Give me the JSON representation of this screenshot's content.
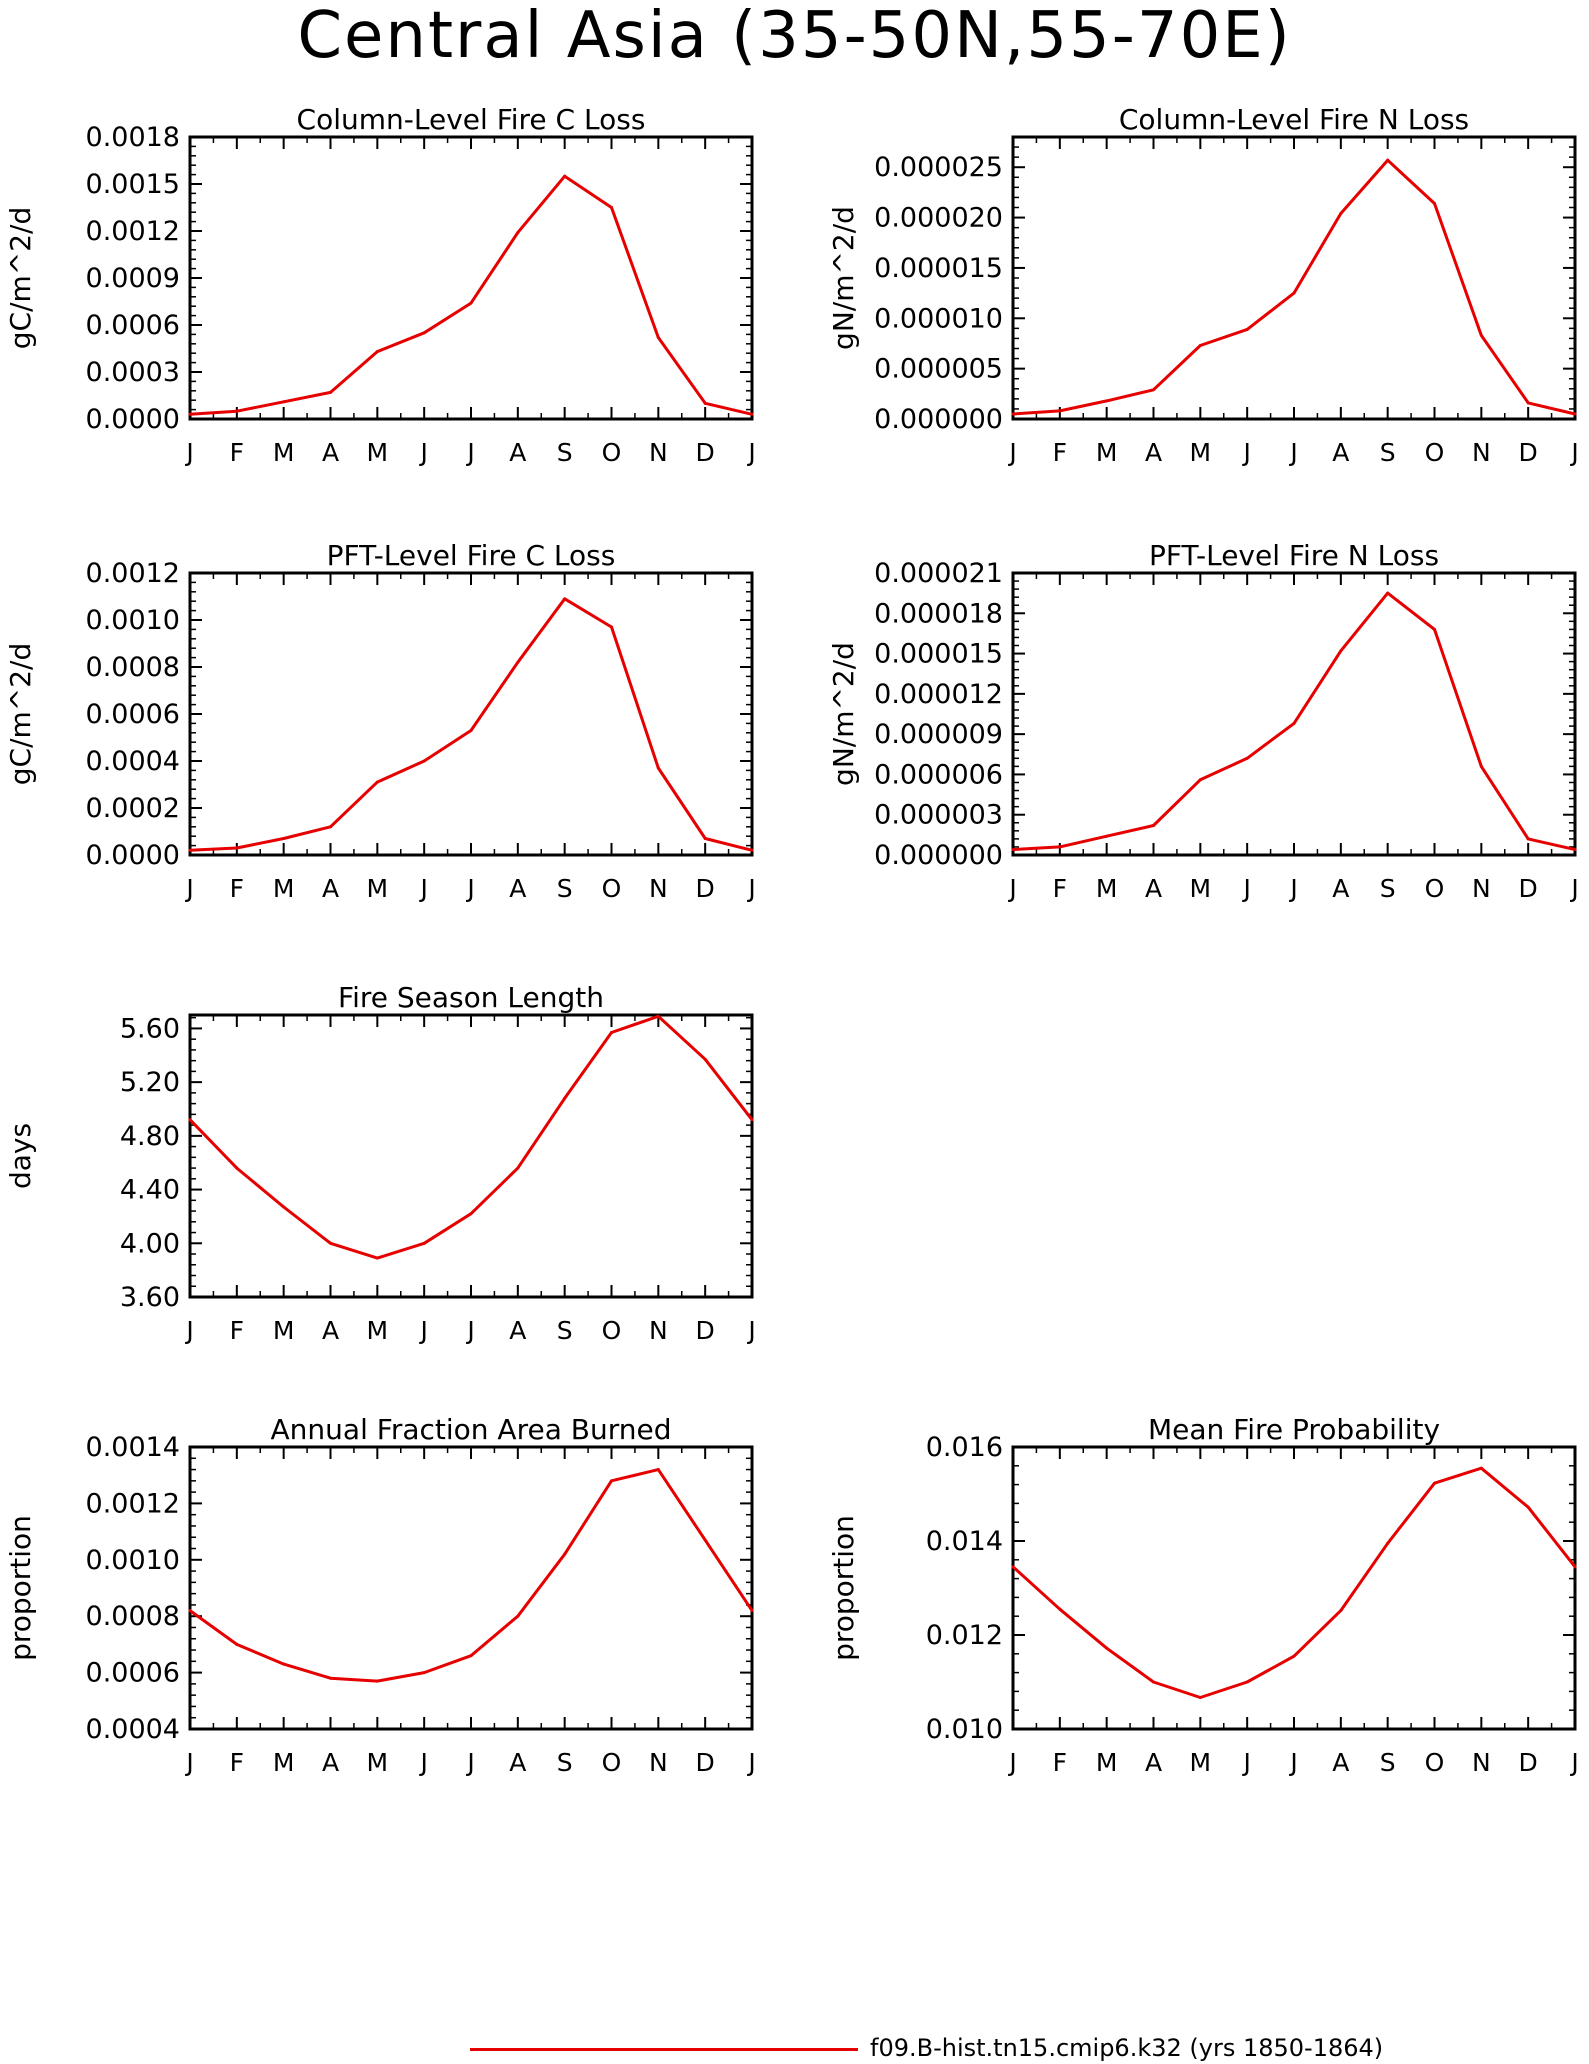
{
  "figure_title": "Central Asia (35-50N,55-70E)",
  "months": [
    "J",
    "F",
    "M",
    "A",
    "M",
    "J",
    "J",
    "A",
    "S",
    "O",
    "N",
    "D",
    "J"
  ],
  "line_color": "#e60000",
  "legend": {
    "label": "f09.B-hist.tn15.cmip6.k32 (yrs 1850-1864)"
  },
  "chart_data": [
    {
      "type": "line",
      "title": "Column-Level Fire C Loss",
      "ylabel": "gC/m^2/d",
      "ylim": [
        0,
        0.0018
      ],
      "yticks": [
        "0.0000",
        "0.0003",
        "0.0006",
        "0.0009",
        "0.0012",
        "0.0015",
        "0.0018"
      ],
      "categories": [
        "J",
        "F",
        "M",
        "A",
        "M",
        "J",
        "J",
        "A",
        "S",
        "O",
        "N",
        "D",
        "J"
      ],
      "values": [
        3e-05,
        5e-05,
        0.00011,
        0.00017,
        0.00043,
        0.00055,
        0.00074,
        0.00119,
        0.00155,
        0.00135,
        0.00052,
        0.0001,
        3e-05
      ]
    },
    {
      "type": "line",
      "title": "Column-Level Fire N Loss",
      "ylabel": "gN/m^2/d",
      "ylim": [
        0,
        2.8e-05
      ],
      "yticks": [
        "0.000000",
        "0.000005",
        "0.000010",
        "0.000015",
        "0.000020",
        "0.000025"
      ],
      "categories": [
        "J",
        "F",
        "M",
        "A",
        "M",
        "J",
        "J",
        "A",
        "S",
        "O",
        "N",
        "D",
        "J"
      ],
      "values": [
        5e-07,
        8e-07,
        1.8e-06,
        2.9e-06,
        7.3e-06,
        8.9e-06,
        1.25e-05,
        2.04e-05,
        2.57e-05,
        2.14e-05,
        8.3e-06,
        1.6e-06,
        5e-07
      ]
    },
    {
      "type": "line",
      "title": "PFT-Level Fire C Loss",
      "ylabel": "gC/m^2/d",
      "ylim": [
        0,
        0.0012
      ],
      "yticks": [
        "0.0000",
        "0.0002",
        "0.0004",
        "0.0006",
        "0.0008",
        "0.0010",
        "0.0012"
      ],
      "categories": [
        "J",
        "F",
        "M",
        "A",
        "M",
        "J",
        "J",
        "A",
        "S",
        "O",
        "N",
        "D",
        "J"
      ],
      "values": [
        2e-05,
        3e-05,
        7e-05,
        0.00012,
        0.00031,
        0.0004,
        0.00053,
        0.00082,
        0.00109,
        0.00097,
        0.00037,
        7e-05,
        2e-05
      ]
    },
    {
      "type": "line",
      "title": "PFT-Level Fire N Loss",
      "ylabel": "gN/m^2/d",
      "ylim": [
        0,
        2.1e-05
      ],
      "yticks": [
        "0.000000",
        "0.000003",
        "0.000006",
        "0.000009",
        "0.000012",
        "0.000015",
        "0.000018",
        "0.000021"
      ],
      "categories": [
        "J",
        "F",
        "M",
        "A",
        "M",
        "J",
        "J",
        "A",
        "S",
        "O",
        "N",
        "D",
        "J"
      ],
      "values": [
        4e-07,
        6e-07,
        1.4e-06,
        2.2e-06,
        5.6e-06,
        7.2e-06,
        9.8e-06,
        1.52e-05,
        1.95e-05,
        1.68e-05,
        6.6e-06,
        1.2e-06,
        4e-07
      ]
    },
    {
      "type": "line",
      "title": "Fire Season Length",
      "ylabel": "days",
      "ylim": [
        3.6,
        5.7
      ],
      "yticks": [
        "3.60",
        "4.00",
        "4.40",
        "4.80",
        "5.20",
        "5.60"
      ],
      "categories": [
        "J",
        "F",
        "M",
        "A",
        "M",
        "J",
        "J",
        "A",
        "S",
        "O",
        "N",
        "D",
        "J"
      ],
      "values": [
        4.92,
        4.56,
        4.27,
        4.0,
        3.89,
        4.0,
        4.22,
        4.56,
        5.08,
        5.57,
        5.69,
        5.37,
        4.92
      ]
    },
    {
      "type": "line",
      "title": "Annual Fraction Area Burned",
      "ylabel": "proportion",
      "ylim": [
        0.0004,
        0.0014
      ],
      "yticks": [
        "0.0004",
        "0.0006",
        "0.0008",
        "0.0010",
        "0.0012",
        "0.0014"
      ],
      "categories": [
        "J",
        "F",
        "M",
        "A",
        "M",
        "J",
        "J",
        "A",
        "S",
        "O",
        "N",
        "D",
        "J"
      ],
      "values": [
        0.00082,
        0.0007,
        0.00063,
        0.00058,
        0.00057,
        0.0006,
        0.00066,
        0.0008,
        0.00102,
        0.00128,
        0.00132,
        0.00107,
        0.00082
      ]
    },
    {
      "type": "line",
      "title": "Mean Fire Probability",
      "ylabel": "proportion",
      "ylim": [
        0.01,
        0.016
      ],
      "yticks": [
        "0.010",
        "0.012",
        "0.014",
        "0.016"
      ],
      "categories": [
        "J",
        "F",
        "M",
        "A",
        "M",
        "J",
        "J",
        "A",
        "S",
        "O",
        "N",
        "D",
        "J"
      ],
      "values": [
        0.01345,
        0.01255,
        0.01172,
        0.011,
        0.01067,
        0.011,
        0.01155,
        0.01252,
        0.01395,
        0.01523,
        0.01555,
        0.01472,
        0.01345
      ]
    }
  ]
}
